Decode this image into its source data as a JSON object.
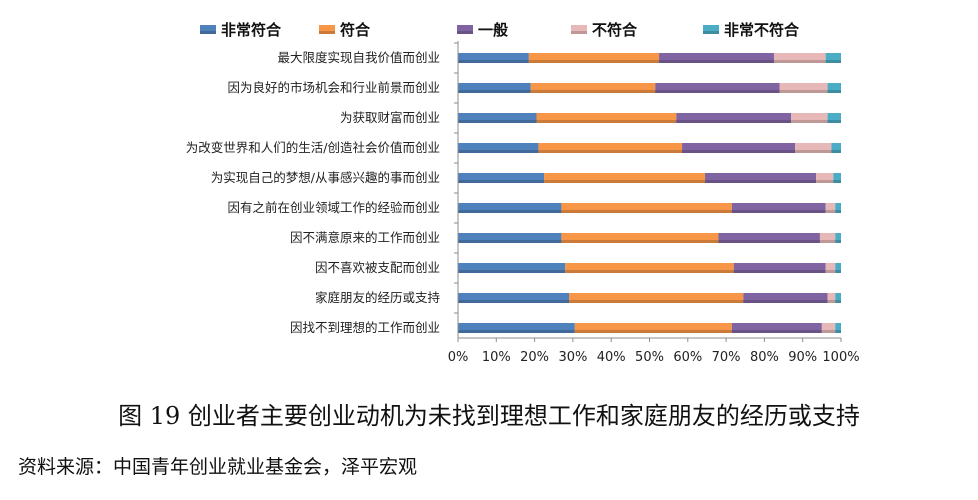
{
  "chart_data": {
    "type": "bar",
    "orientation": "horizontal",
    "stacked": true,
    "percent": true,
    "legend_position": "top",
    "grid": false,
    "xlim": [
      0,
      100
    ],
    "x_ticks": [
      "0%",
      "10%",
      "20%",
      "30%",
      "40%",
      "50%",
      "60%",
      "70%",
      "80%",
      "90%",
      "100%"
    ],
    "categories": [
      "最大限度实现自我价值而创业",
      "因为良好的市场机会和行业前景而创业",
      "为获取财富而创业",
      "为改变世界和人们的生活/创造社会价值而创业",
      "为实现自己的梦想/从事感兴趣的事而创业",
      "因有之前在创业领域工作的经验而创业",
      "因不满意原来的工作而创业",
      "因不喜欢被支配而创业",
      "家庭朋友的经历或支持",
      "因找不到理想的工作而创业"
    ],
    "series": [
      {
        "name": "非常符合",
        "color": "#4F81BD",
        "values": [
          18.5,
          19,
          20.5,
          21,
          22.5,
          27,
          27,
          28,
          29,
          30.5
        ]
      },
      {
        "name": "符合",
        "color": "#F79646",
        "values": [
          34,
          32.5,
          36.5,
          37.5,
          42,
          44.5,
          41,
          44,
          45.5,
          41
        ]
      },
      {
        "name": "一般",
        "color": "#8064A2",
        "values": [
          30,
          32.5,
          30,
          29.5,
          29,
          24.5,
          26.5,
          24,
          22,
          23.5
        ]
      },
      {
        "name": "不符合",
        "color": "#E6B9B8",
        "values": [
          13.5,
          12.5,
          9.5,
          9.5,
          4.5,
          2.5,
          4,
          2.5,
          2,
          3.5
        ]
      },
      {
        "name": "非常不符合",
        "color": "#4BACC6",
        "values": [
          4,
          3.5,
          3.5,
          2.5,
          2,
          1.5,
          1.5,
          1.5,
          1.5,
          1.5
        ]
      }
    ]
  },
  "caption": "图 19  创业者主要创业动机为未找到理想工作和家庭朋友的经历或支持",
  "source": "资料来源：中国青年创业就业基金会，泽平宏观"
}
